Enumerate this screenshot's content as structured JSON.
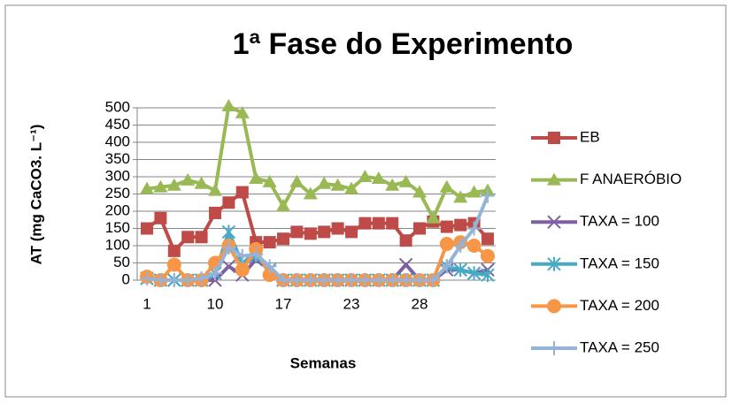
{
  "chart_data": {
    "type": "line",
    "title": "1ª Fase do Experimento",
    "xlabel": "Semanas",
    "ylabel": "AT (mg CaCO3. L⁻¹)",
    "categories": [
      "1",
      null,
      null,
      null,
      null,
      "10",
      null,
      null,
      null,
      null,
      "17",
      null,
      null,
      null,
      null,
      "23",
      null,
      null,
      null,
      null,
      "28",
      null,
      null,
      null,
      null,
      null
    ],
    "ylim": [
      0,
      500
    ],
    "yticks": [
      0,
      50,
      100,
      150,
      200,
      250,
      300,
      350,
      400,
      450,
      500
    ],
    "grid": true,
    "legend": "right",
    "series": [
      {
        "name": "EB",
        "color": "#be4b48",
        "marker": "square",
        "values": [
          150,
          180,
          85,
          125,
          125,
          195,
          225,
          255,
          110,
          110,
          120,
          140,
          135,
          140,
          150,
          140,
          165,
          165,
          165,
          115,
          150,
          170,
          155,
          160,
          165,
          120
        ]
      },
      {
        "name": "F ANAERÓBIO",
        "color": "#98b954",
        "marker": "triangle",
        "values": [
          265,
          270,
          275,
          290,
          280,
          260,
          505,
          485,
          295,
          285,
          215,
          285,
          250,
          280,
          275,
          265,
          300,
          295,
          275,
          285,
          255,
          180,
          270,
          240,
          255,
          260
        ]
      },
      {
        "name": "TAXA = 100",
        "color": "#7d60a0",
        "marker": "x",
        "values": [
          5,
          0,
          0,
          0,
          0,
          0,
          40,
          15,
          60,
          30,
          0,
          0,
          0,
          0,
          0,
          0,
          0,
          0,
          0,
          45,
          0,
          0,
          30,
          30,
          20,
          30
        ]
      },
      {
        "name": "TAXA = 150",
        "color": "#46aac5",
        "marker": "star",
        "values": [
          5,
          0,
          0,
          0,
          0,
          20,
          140,
          50,
          70,
          30,
          0,
          0,
          0,
          0,
          0,
          0,
          0,
          0,
          0,
          0,
          0,
          0,
          40,
          30,
          20,
          15
        ]
      },
      {
        "name": "TAXA = 200",
        "color": "#f79646",
        "marker": "circle",
        "values": [
          10,
          0,
          45,
          0,
          0,
          50,
          100,
          30,
          90,
          15,
          0,
          0,
          0,
          0,
          0,
          0,
          0,
          0,
          0,
          0,
          0,
          0,
          105,
          110,
          100,
          70
        ]
      },
      {
        "name": "TAXA = 250",
        "color": "#95b3d7",
        "marker": "plus",
        "values": [
          5,
          0,
          0,
          0,
          5,
          20,
          95,
          70,
          75,
          40,
          0,
          0,
          0,
          0,
          0,
          0,
          0,
          0,
          0,
          0,
          0,
          0,
          40,
          100,
          150,
          245
        ]
      }
    ]
  }
}
